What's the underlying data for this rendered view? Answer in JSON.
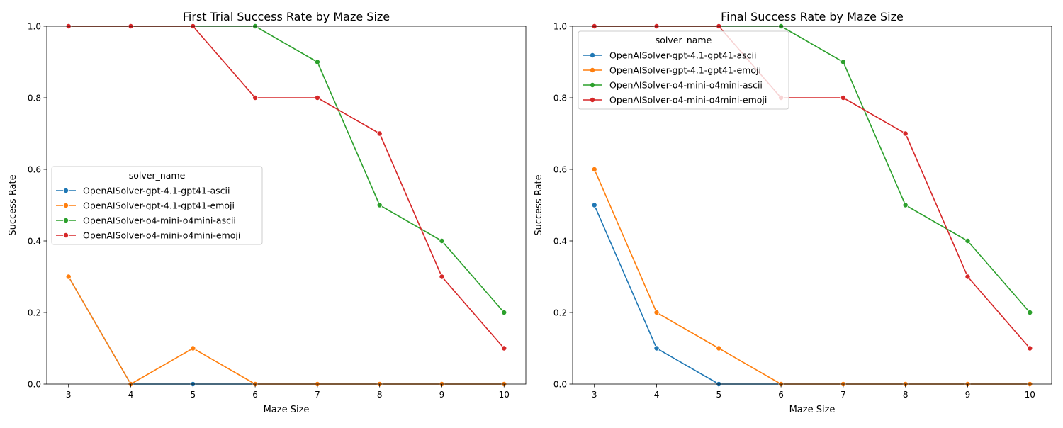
{
  "chart_data": [
    {
      "type": "line",
      "title": "First Trial Success Rate by Maze Size",
      "xlabel": "Maze Size",
      "ylabel": "Success Rate",
      "x": [
        3,
        4,
        5,
        6,
        7,
        8,
        9,
        10
      ],
      "xlim": [
        2.65,
        10.35
      ],
      "ylim": [
        0,
        1
      ],
      "yticks": [
        0.0,
        0.2,
        0.4,
        0.6,
        0.8,
        1.0
      ],
      "grid": false,
      "legend": {
        "title": "solver_name",
        "placement": "center-left"
      },
      "series": [
        {
          "name": "OpenAISolver-gpt-4.1-gpt41-ascii",
          "color": "#1f77b4",
          "values": [
            0.3,
            0.0,
            0.0,
            0.0,
            0.0,
            0.0,
            0.0,
            0.0
          ]
        },
        {
          "name": "OpenAISolver-gpt-4.1-gpt41-emoji",
          "color": "#ff7f0e",
          "values": [
            0.3,
            0.0,
            0.1,
            0.0,
            0.0,
            0.0,
            0.0,
            0.0
          ]
        },
        {
          "name": "OpenAISolver-o4-mini-o4mini-ascii",
          "color": "#2ca02c",
          "values": [
            1.0,
            1.0,
            1.0,
            1.0,
            0.9,
            0.5,
            0.4,
            0.2
          ]
        },
        {
          "name": "OpenAISolver-o4-mini-o4mini-emoji",
          "color": "#d62728",
          "values": [
            1.0,
            1.0,
            1.0,
            0.8,
            0.8,
            0.7,
            0.3,
            0.1
          ]
        }
      ]
    },
    {
      "type": "line",
      "title": "Final Success Rate by Maze Size",
      "xlabel": "Maze Size",
      "ylabel": "Success Rate",
      "x": [
        3,
        4,
        5,
        6,
        7,
        8,
        9,
        10
      ],
      "xlim": [
        2.65,
        10.35
      ],
      "ylim": [
        0,
        1
      ],
      "yticks": [
        0.0,
        0.2,
        0.4,
        0.6,
        0.8,
        1.0
      ],
      "grid": false,
      "legend": {
        "title": "solver_name",
        "placement": "upper-left"
      },
      "series": [
        {
          "name": "OpenAISolver-gpt-4.1-gpt41-ascii",
          "color": "#1f77b4",
          "values": [
            0.5,
            0.1,
            0.0,
            0.0,
            0.0,
            0.0,
            0.0,
            0.0
          ]
        },
        {
          "name": "OpenAISolver-gpt-4.1-gpt41-emoji",
          "color": "#ff7f0e",
          "values": [
            0.6,
            0.2,
            0.1,
            0.0,
            0.0,
            0.0,
            0.0,
            0.0
          ]
        },
        {
          "name": "OpenAISolver-o4-mini-o4mini-ascii",
          "color": "#2ca02c",
          "values": [
            1.0,
            1.0,
            1.0,
            1.0,
            0.9,
            0.5,
            0.4,
            0.2
          ]
        },
        {
          "name": "OpenAISolver-o4-mini-o4mini-emoji",
          "color": "#d62728",
          "values": [
            1.0,
            1.0,
            1.0,
            0.8,
            0.8,
            0.7,
            0.3,
            0.1
          ]
        }
      ]
    }
  ]
}
